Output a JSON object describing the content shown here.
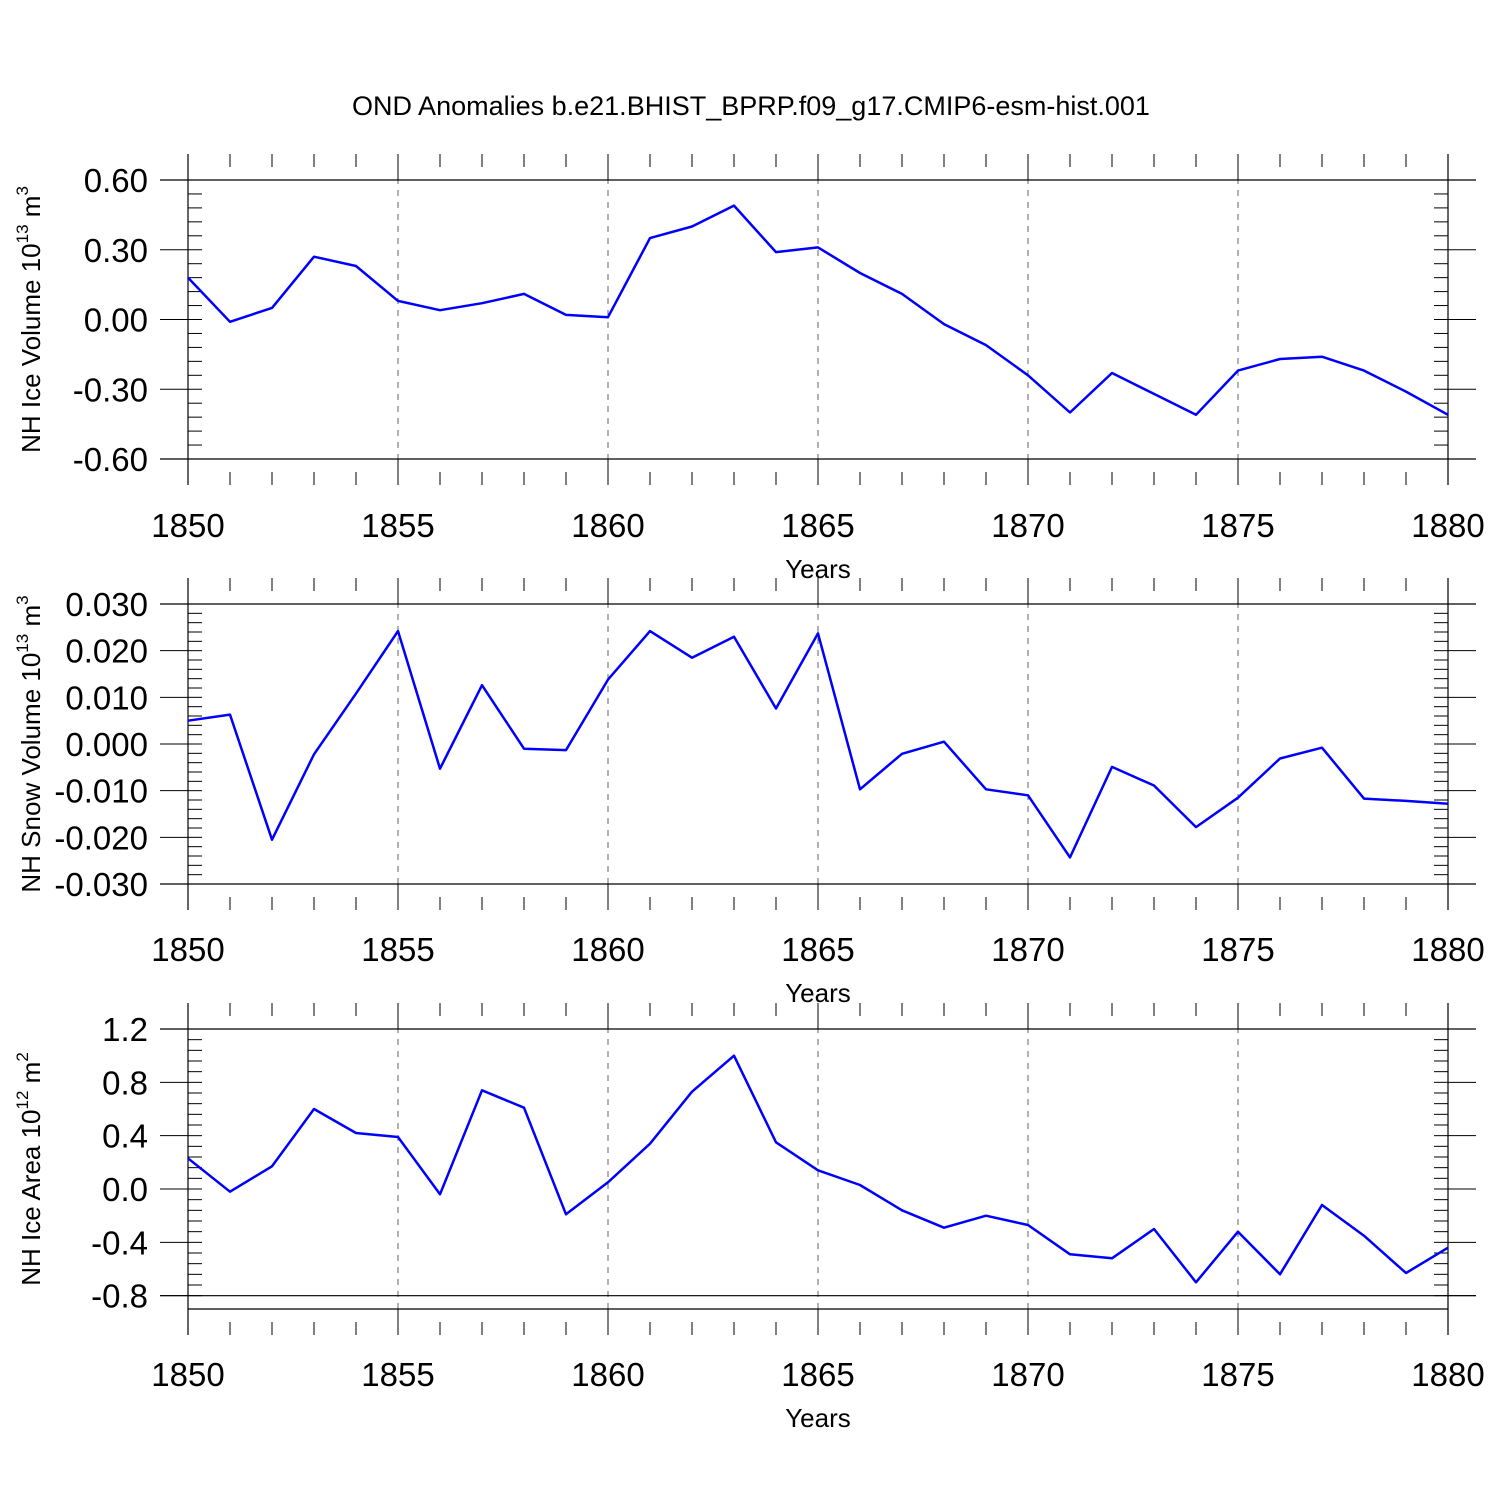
{
  "chart_data": [
    {
      "type": "line",
      "title": "OND Anomalies b.e21.BHIST_BPRP.f09_g17.CMIP6-esm-hist.001",
      "ylabel_text": "NH Ice Volume 10",
      "ylabel_exp": "13",
      "ylabel_unit": " m",
      "ylabel_unit_exp": "3",
      "xlabel": "Years",
      "xlim": [
        1850,
        1880
      ],
      "ylim": [
        -0.6,
        0.6
      ],
      "yticks": [
        -0.6,
        -0.3,
        0.0,
        0.3,
        0.6
      ],
      "ytick_labels": [
        "-0.60",
        "-0.30",
        "0.00",
        "0.30",
        "0.60"
      ],
      "xticks": [
        1850,
        1855,
        1860,
        1865,
        1870,
        1875,
        1880
      ],
      "xtick_labels": [
        "1850",
        "1855",
        "1860",
        "1865",
        "1870",
        "1875",
        "1880"
      ],
      "line_color": "#0000ff",
      "series": [
        {
          "name": "NH Ice Volume",
          "x": [
            1850,
            1851,
            1852,
            1853,
            1854,
            1855,
            1856,
            1857,
            1858,
            1859,
            1860,
            1861,
            1862,
            1863,
            1864,
            1865,
            1866,
            1867,
            1868,
            1869,
            1870,
            1871,
            1872,
            1873,
            1874,
            1875,
            1876,
            1877,
            1878,
            1879,
            1880
          ],
          "values": [
            0.18,
            -0.01,
            0.05,
            0.27,
            0.23,
            0.08,
            0.04,
            0.07,
            0.11,
            0.02,
            0.01,
            0.35,
            0.4,
            0.49,
            0.29,
            0.31,
            0.2,
            0.11,
            -0.02,
            -0.11,
            -0.24,
            -0.4,
            -0.23,
            -0.32,
            -0.41,
            -0.22,
            -0.17,
            -0.16,
            -0.22,
            -0.31,
            -0.41
          ]
        }
      ]
    },
    {
      "type": "line",
      "ylabel_text": "NH Snow Volume 10",
      "ylabel_exp": "13",
      "ylabel_unit": " m",
      "ylabel_unit_exp": "3",
      "xlabel": "Years",
      "xlim": [
        1850,
        1880
      ],
      "ylim": [
        -0.03,
        0.03
      ],
      "yticks": [
        -0.03,
        -0.02,
        -0.01,
        0.0,
        0.01,
        0.02,
        0.03
      ],
      "ytick_labels": [
        "-0.030",
        "-0.020",
        "-0.010",
        "0.000",
        "0.010",
        "0.020",
        "0.030"
      ],
      "xticks": [
        1850,
        1855,
        1860,
        1865,
        1870,
        1875,
        1880
      ],
      "xtick_labels": [
        "1850",
        "1855",
        "1860",
        "1865",
        "1870",
        "1875",
        "1880"
      ],
      "line_color": "#0000ff",
      "series": [
        {
          "name": "NH Snow Volume",
          "x": [
            1850,
            1851,
            1852,
            1853,
            1854,
            1855,
            1856,
            1857,
            1858,
            1859,
            1860,
            1861,
            1862,
            1863,
            1864,
            1865,
            1866,
            1867,
            1868,
            1869,
            1870,
            1871,
            1872,
            1873,
            1874,
            1875,
            1876,
            1877,
            1878,
            1879,
            1880
          ],
          "values": [
            0.005,
            0.0063,
            -0.0205,
            -0.0022,
            0.0108,
            0.0242,
            -0.0053,
            0.0126,
            -0.001,
            -0.0013,
            0.0138,
            0.0242,
            0.0185,
            0.023,
            0.0076,
            0.0237,
            -0.0097,
            -0.0021,
            0.0005,
            -0.0097,
            -0.011,
            -0.0243,
            -0.0049,
            -0.0089,
            -0.0178,
            -0.0115,
            -0.0031,
            -0.0008,
            -0.0117,
            -0.0122,
            -0.0128
          ]
        }
      ]
    },
    {
      "type": "line",
      "ylabel_text": "NH Ice Area 10",
      "ylabel_exp": "12",
      "ylabel_unit": " m",
      "ylabel_unit_exp": "2",
      "xlabel": "Years",
      "xlim": [
        1850,
        1880
      ],
      "ylim": [
        -0.9,
        1.2
      ],
      "yticks": [
        -0.8,
        -0.4,
        0.0,
        0.4,
        0.8,
        1.2
      ],
      "ytick_labels": [
        "-0.8",
        "-0.4",
        "0.0",
        "0.4",
        "0.8",
        "1.2"
      ],
      "xticks": [
        1850,
        1855,
        1860,
        1865,
        1870,
        1875,
        1880
      ],
      "xtick_labels": [
        "1850",
        "1855",
        "1860",
        "1865",
        "1870",
        "1875",
        "1880"
      ],
      "line_color": "#0000ff",
      "series": [
        {
          "name": "NH Ice Area",
          "x": [
            1850,
            1851,
            1852,
            1853,
            1854,
            1855,
            1856,
            1857,
            1858,
            1859,
            1860,
            1861,
            1862,
            1863,
            1864,
            1865,
            1866,
            1867,
            1868,
            1869,
            1870,
            1871,
            1872,
            1873,
            1874,
            1875,
            1876,
            1877,
            1878,
            1879,
            1880
          ],
          "values": [
            0.23,
            -0.02,
            0.17,
            0.6,
            0.42,
            0.39,
            -0.04,
            0.74,
            0.61,
            -0.19,
            0.05,
            0.34,
            0.73,
            1.0,
            0.35,
            0.14,
            0.03,
            -0.16,
            -0.29,
            -0.2,
            -0.27,
            -0.49,
            -0.52,
            -0.3,
            -0.7,
            -0.32,
            -0.64,
            -0.12,
            -0.35,
            -0.63,
            -0.44
          ]
        }
      ]
    }
  ]
}
